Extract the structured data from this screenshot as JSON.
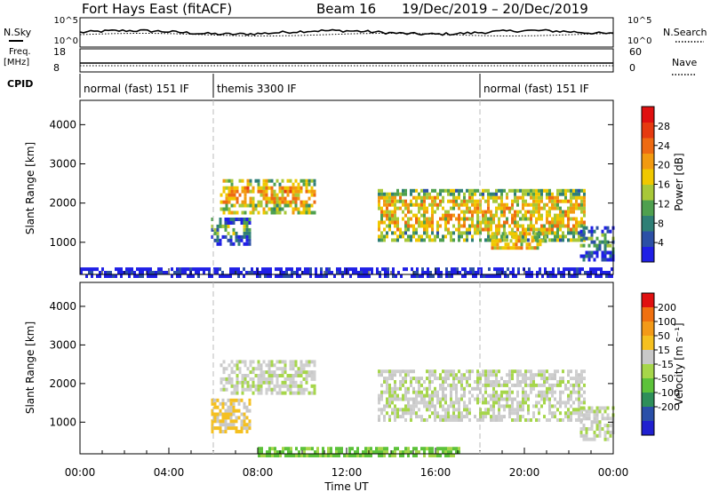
{
  "header": {
    "title": "Fort Hays East (fitACF)",
    "beam": "Beam 16",
    "date_range": "19/Dec/2019 – 20/Dec/2019"
  },
  "top_panels": {
    "nsky_label": "N.Sky",
    "nsearch_label": "N.Search",
    "freq_label_1": "Freq.",
    "freq_label_2": "[MHz]",
    "nave_label": "Nave",
    "cpid_label": "CPID",
    "noise_ticks_left": [
      "10^5",
      "10^0"
    ],
    "noise_ticks_right": [
      "10^5",
      "10^0"
    ],
    "freq_ticks": [
      "18",
      "8"
    ],
    "nave_ticks": [
      "60",
      "0"
    ]
  },
  "cpid_segments": [
    {
      "label": "normal (fast) 151 IF",
      "start_hour": 0,
      "end_hour": 6
    },
    {
      "label": "themis 3300 IF",
      "start_hour": 6,
      "end_hour": 18
    },
    {
      "label": "normal (fast) 151 IF",
      "start_hour": 18,
      "end_hour": 24
    }
  ],
  "colors": {
    "power": [
      "#1f1fe6",
      "#2c50a6",
      "#2f7f76",
      "#4fa04f",
      "#a8c838",
      "#f0c800",
      "#f29a10",
      "#ee6a12",
      "#e63a10",
      "#e01010"
    ],
    "velocity": [
      "#e01010",
      "#f07010",
      "#f39a18",
      "#f5c020",
      "#c8c8c8",
      "#a6d64a",
      "#5cc23a",
      "#2e8f5a",
      "#2a4fa8",
      "#2020d0"
    ],
    "ground": "#cfcfcf"
  },
  "chart_data": [
    {
      "type": "heatmap",
      "name_text": "Power",
      "xlabel": "Time UT",
      "ylabel": "Slant Range [km]",
      "x_ticks": [
        "00:00",
        "04:00",
        "08:00",
        "12:00",
        "16:00",
        "20:00",
        "00:00"
      ],
      "xlim_hours": [
        0,
        24
      ],
      "y_ticks": [
        1000,
        2000,
        3000,
        4000
      ],
      "ylim": [
        180,
        4620
      ],
      "colorbar_label": "Power [dB]",
      "colorbar_ticks": [
        4,
        8,
        12,
        16,
        20,
        24,
        28
      ],
      "clim": [
        0,
        32
      ],
      "bands": [
        {
          "t0": 6.3,
          "t1": 10.6,
          "r0": 1800,
          "r1": 2700,
          "value": 20
        },
        {
          "t0": 5.9,
          "t1": 7.6,
          "r0": 1000,
          "r1": 1700,
          "value": 11
        },
        {
          "t0": 13.4,
          "t1": 22.7,
          "r0": 1100,
          "r1": 2400,
          "value": 18
        },
        {
          "t0": 18.5,
          "t1": 21.0,
          "r0": 900,
          "r1": 1300,
          "value": 24
        },
        {
          "t0": 22.5,
          "t1": 24.0,
          "r0": 600,
          "r1": 1500,
          "value": 9
        },
        {
          "t0": 0,
          "t1": 24,
          "r0": 180,
          "r1": 450,
          "value": 6
        }
      ]
    },
    {
      "type": "heatmap",
      "name_text": "Velocity",
      "xlabel": "Time UT",
      "ylabel": "Slant Range [km]",
      "x_ticks": [
        "00:00",
        "04:00",
        "08:00",
        "12:00",
        "16:00",
        "20:00",
        "00:00"
      ],
      "xlim_hours": [
        0,
        24
      ],
      "y_ticks": [
        1000,
        2000,
        3000,
        4000
      ],
      "ylim": [
        180,
        4620
      ],
      "colorbar_label": "Velocity [m s⁻¹]",
      "colorbar_ticks": [
        200,
        100,
        50,
        15,
        -15,
        -50,
        -100,
        -200
      ],
      "clim": [
        -250,
        250
      ],
      "bands": [
        {
          "t0": 6.3,
          "t1": 10.6,
          "r0": 1800,
          "r1": 2700,
          "value": 0
        },
        {
          "t0": 5.9,
          "t1": 7.6,
          "r0": 800,
          "r1": 1700,
          "value": 60
        },
        {
          "t0": 13.4,
          "t1": 22.7,
          "r0": 1100,
          "r1": 2400,
          "value": 0
        },
        {
          "t0": 22.5,
          "t1": 24.0,
          "r0": 600,
          "r1": 1500,
          "value": 0
        },
        {
          "t0": 8.0,
          "t1": 17.0,
          "r0": 180,
          "r1": 450,
          "value": -60
        }
      ]
    }
  ]
}
